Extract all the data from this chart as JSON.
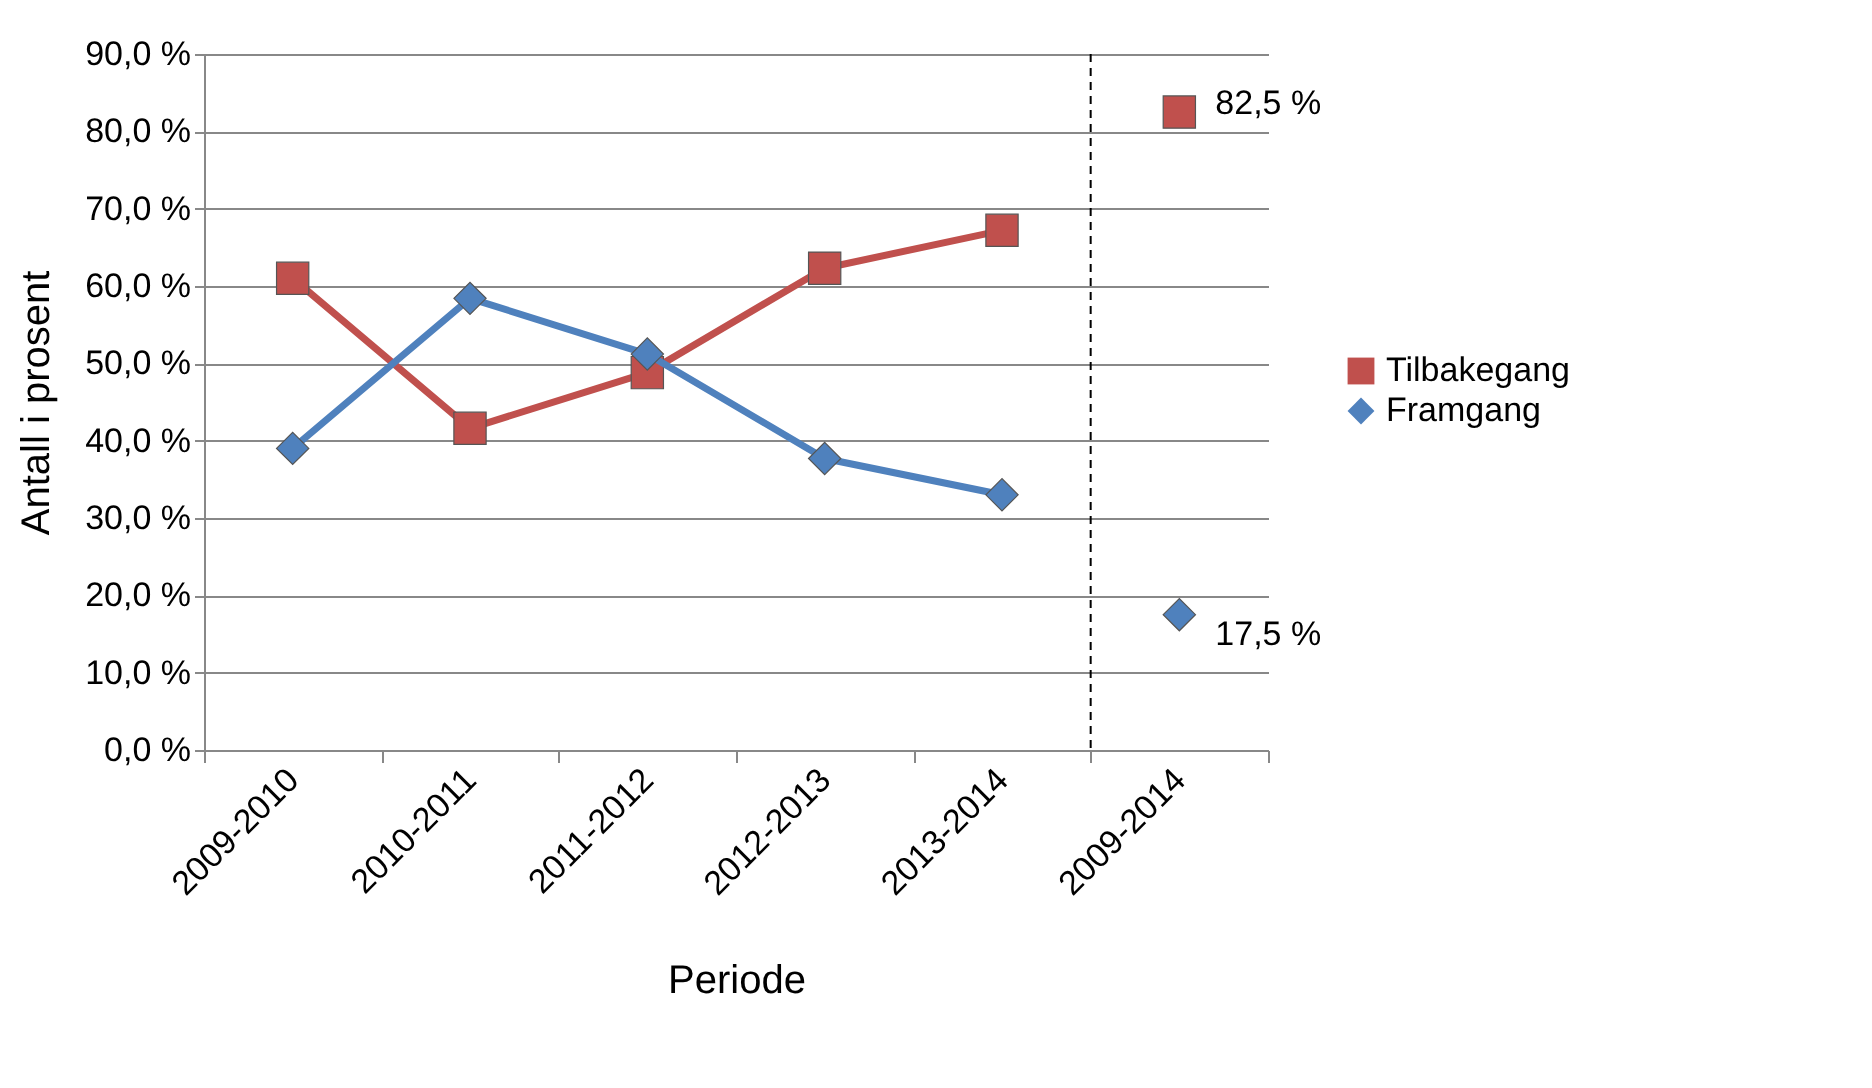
{
  "chart_data": {
    "type": "line",
    "xlabel": "Periode",
    "ylabel": "Antall i prosent",
    "categories": [
      "2009-2010",
      "2010-2011",
      "2011-2012",
      "2012-2013",
      "2013-2014",
      "2009-2014"
    ],
    "series": [
      {
        "name": "Tilbakegang",
        "color": "#c0504d",
        "marker": "square",
        "values": [
          61.0,
          41.6,
          48.8,
          62.3,
          67.2,
          null
        ]
      },
      {
        "name": "Framgang",
        "color": "#4f81bd",
        "marker": "diamond",
        "values": [
          39.0,
          58.4,
          51.2,
          37.7,
          33.0,
          null
        ]
      },
      {
        "type": "scatter",
        "color": "#c0504d",
        "marker": "square",
        "x": [
          "2009-2014"
        ],
        "values": [
          82.5
        ],
        "value_labels": [
          "82,5 %"
        ]
      },
      {
        "type": "scatter",
        "color": "#4f81bd",
        "marker": "diamond",
        "x": [
          "2009-2014"
        ],
        "values": [
          17.5
        ],
        "value_labels": [
          "17,5 %"
        ]
      }
    ],
    "ylim": [
      0,
      90
    ],
    "yticks": [
      {
        "value": 0,
        "label": "0,0 %"
      },
      {
        "value": 10,
        "label": "10,0 %"
      },
      {
        "value": 20,
        "label": "20,0 %"
      },
      {
        "value": 30,
        "label": "30,0 %"
      },
      {
        "value": 40,
        "label": "40,0 %"
      },
      {
        "value": 50,
        "label": "50,0 %"
      },
      {
        "value": 60,
        "label": "60,0 %"
      },
      {
        "value": 70,
        "label": "70,0 %"
      },
      {
        "value": 80,
        "label": "80,0 %"
      },
      {
        "value": 90,
        "label": "90,0 %"
      }
    ],
    "ref_lines": [
      {
        "axis": "x",
        "value": "2009-2014",
        "color": "#000000",
        "line_style": "dashed"
      }
    ],
    "grid": "y",
    "legend": "right"
  }
}
